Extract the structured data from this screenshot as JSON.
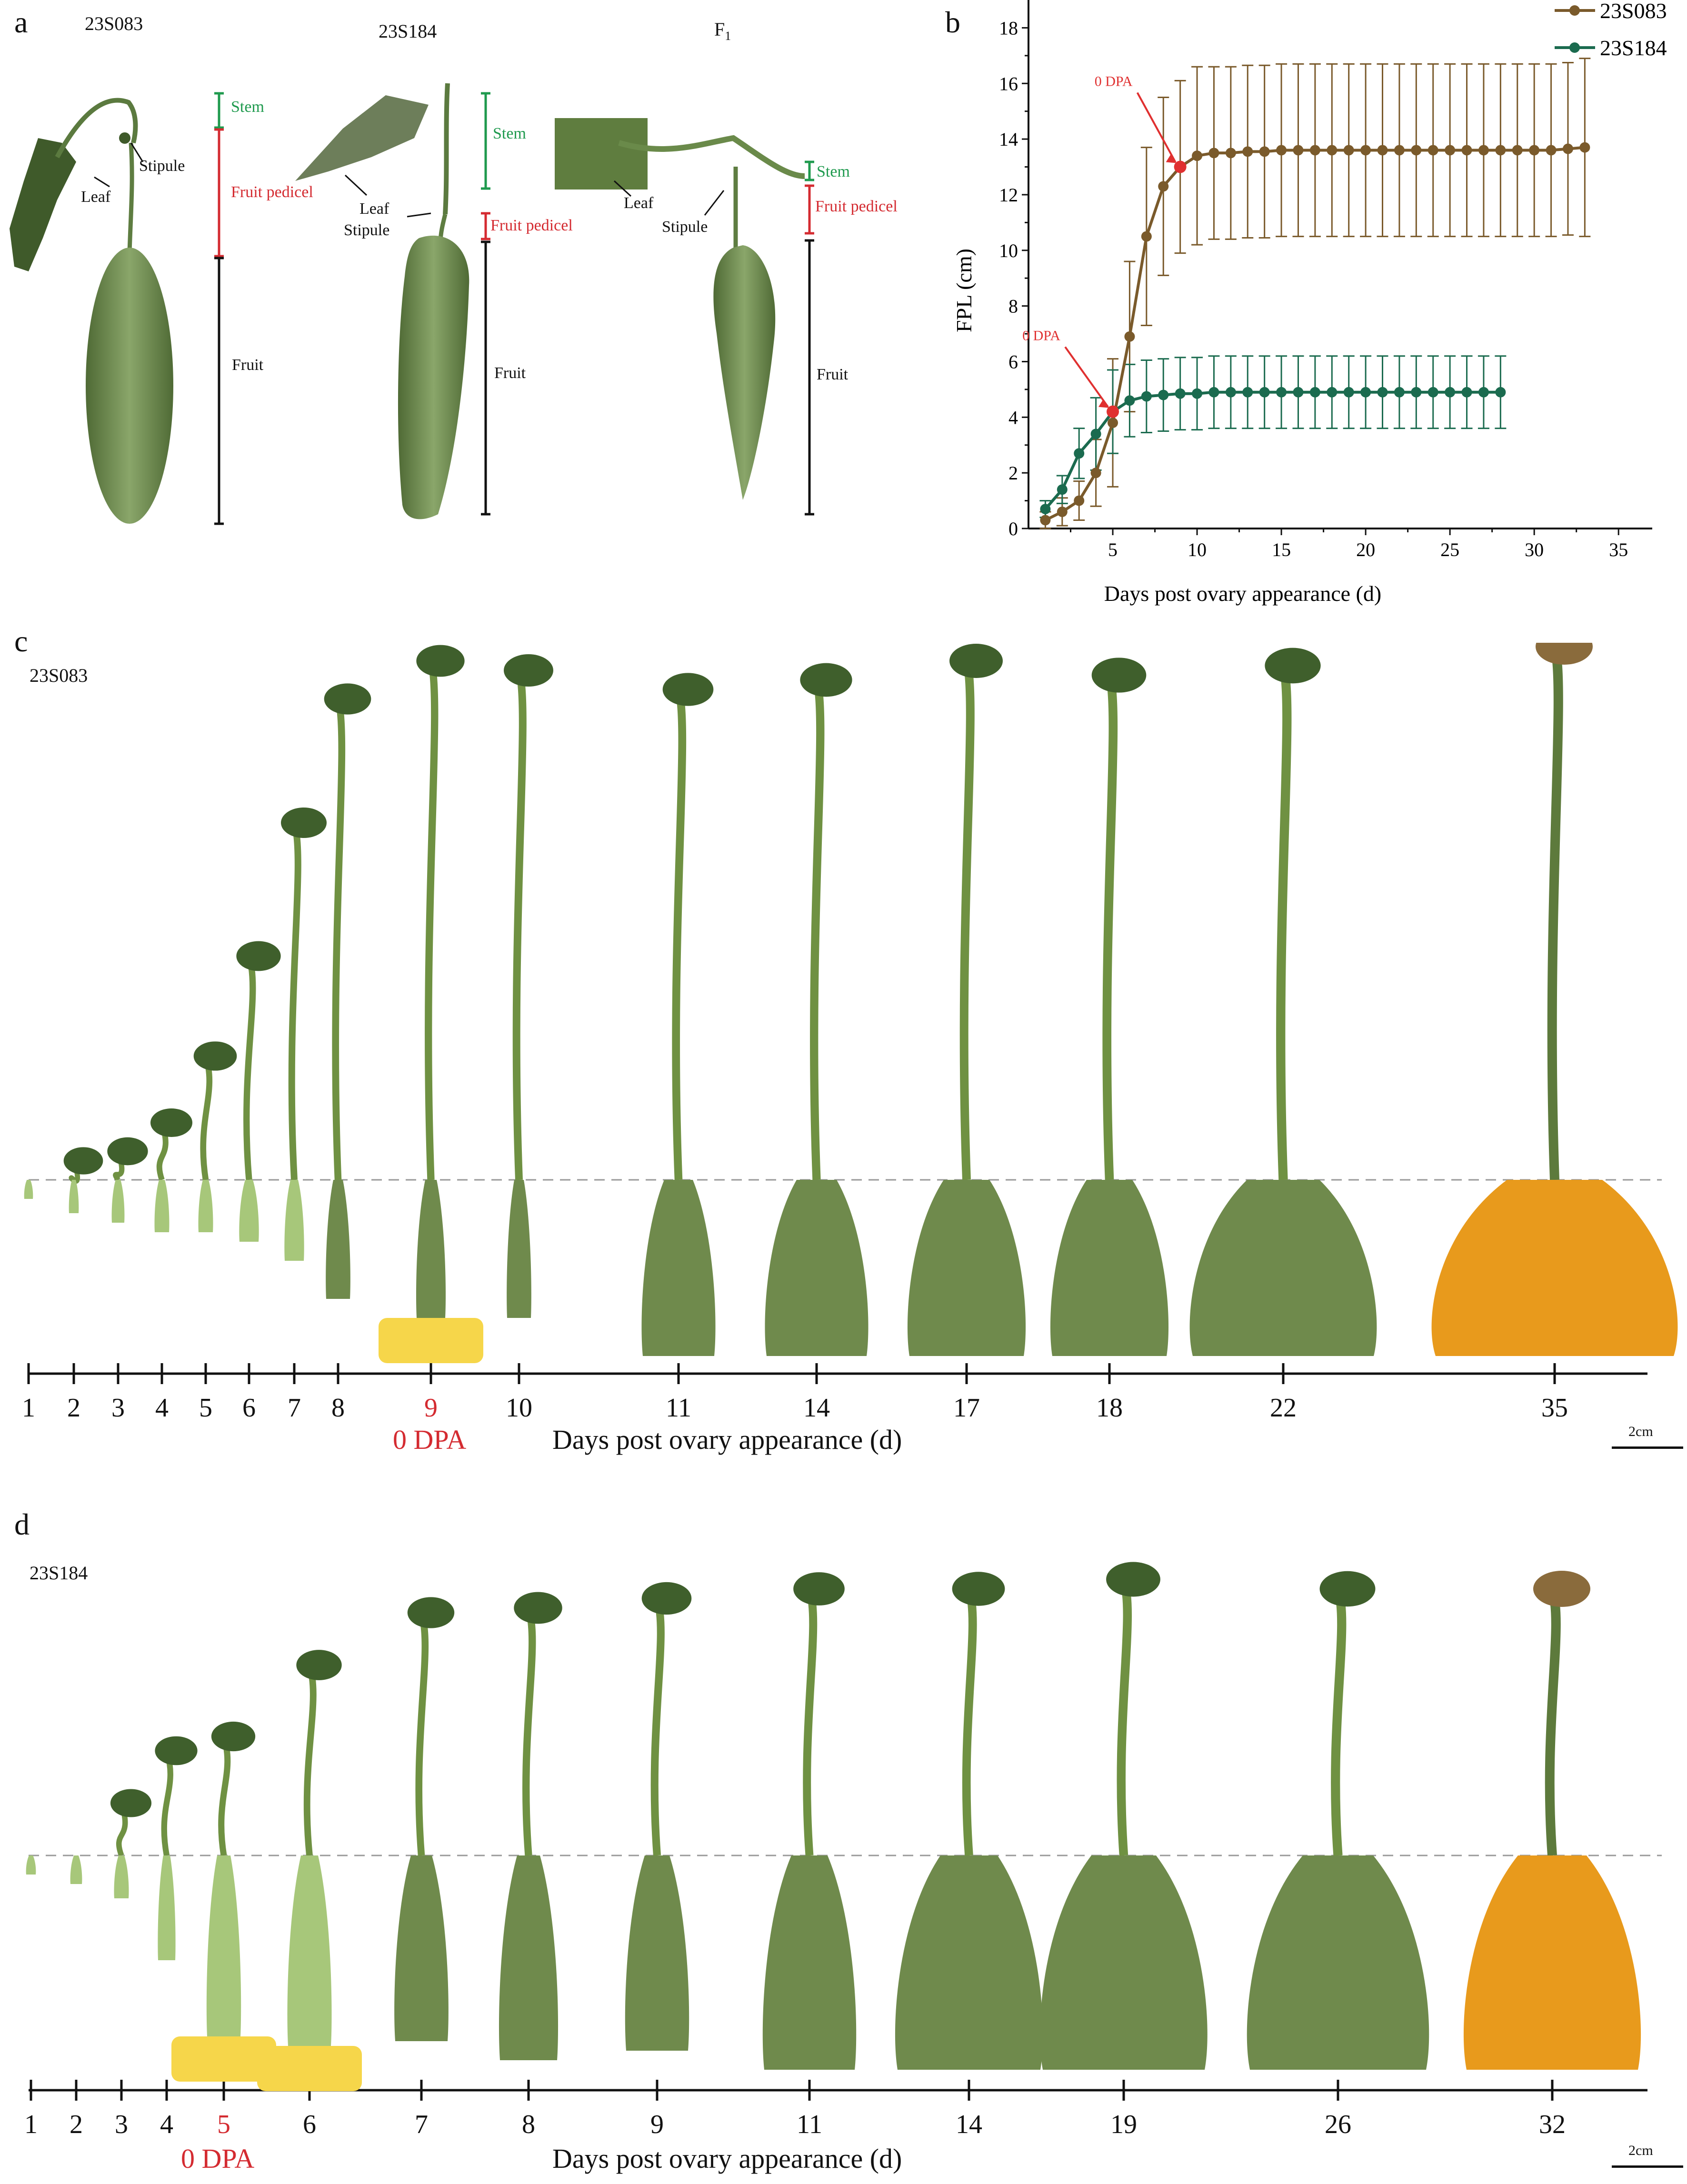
{
  "panel_a": {
    "letter": "a",
    "specimens": [
      {
        "title": "23S083",
        "stem": "Stem",
        "pedicel": "Fruit pedicel",
        "fruit": "Fruit",
        "leaf": "Leaf",
        "stipule": "Stipule"
      },
      {
        "title": "23S184",
        "stem": "Stem",
        "pedicel": "Fruit pedicel",
        "fruit": "Fruit",
        "leaf": "Leaf",
        "stipule": "Stipule"
      },
      {
        "title": "F",
        "title_sub": "1",
        "stem": "Stem",
        "pedicel": "Fruit pedicel",
        "fruit": "Fruit",
        "leaf": "Leaf",
        "stipule": "Stipule"
      }
    ]
  },
  "panel_b": {
    "letter": "b"
  },
  "chart_data": {
    "type": "line",
    "xlabel": "Days post ovary appearance (d)",
    "ylabel": "FPL (cm)",
    "xlim": [
      0,
      37
    ],
    "ylim": [
      0,
      19
    ],
    "xticks": [
      5,
      10,
      15,
      20,
      25,
      30,
      35
    ],
    "yticks": [
      0,
      2,
      4,
      6,
      8,
      10,
      12,
      14,
      16,
      18
    ],
    "legend_position": "top-right",
    "grid": false,
    "series": [
      {
        "name": "23S083",
        "color": "#7a5a2b",
        "x": [
          1,
          2,
          3,
          4,
          5,
          6,
          7,
          8,
          9,
          10,
          11,
          12,
          13,
          14,
          15,
          16,
          17,
          18,
          19,
          20,
          21,
          22,
          23,
          24,
          25,
          26,
          27,
          28,
          29,
          30,
          31,
          32,
          33
        ],
        "y": [
          0.3,
          0.6,
          1.0,
          2.0,
          3.8,
          6.9,
          10.5,
          12.3,
          13.0,
          13.4,
          13.5,
          13.5,
          13.55,
          13.55,
          13.6,
          13.6,
          13.6,
          13.6,
          13.6,
          13.6,
          13.6,
          13.6,
          13.6,
          13.6,
          13.6,
          13.6,
          13.6,
          13.6,
          13.6,
          13.6,
          13.6,
          13.65,
          13.7
        ],
        "err": [
          0.3,
          0.5,
          0.7,
          1.2,
          2.3,
          2.7,
          3.2,
          3.2,
          3.1,
          3.2,
          3.1,
          3.1,
          3.1,
          3.1,
          3.1,
          3.1,
          3.1,
          3.1,
          3.1,
          3.1,
          3.1,
          3.1,
          3.1,
          3.1,
          3.1,
          3.1,
          3.1,
          3.1,
          3.1,
          3.1,
          3.1,
          3.1,
          3.2
        ]
      },
      {
        "name": "23S184",
        "color": "#1b6b4f",
        "x": [
          1,
          2,
          3,
          4,
          5,
          6,
          7,
          8,
          9,
          10,
          11,
          12,
          13,
          14,
          15,
          16,
          17,
          18,
          19,
          20,
          21,
          22,
          23,
          24,
          25,
          26,
          27,
          28
        ],
        "y": [
          0.7,
          1.4,
          2.7,
          3.4,
          4.2,
          4.6,
          4.75,
          4.8,
          4.85,
          4.85,
          4.9,
          4.9,
          4.9,
          4.9,
          4.9,
          4.9,
          4.9,
          4.9,
          4.9,
          4.9,
          4.9,
          4.9,
          4.9,
          4.9,
          4.9,
          4.9,
          4.9,
          4.9
        ],
        "err": [
          0.3,
          0.5,
          0.9,
          1.3,
          1.5,
          1.3,
          1.3,
          1.3,
          1.3,
          1.3,
          1.3,
          1.3,
          1.3,
          1.3,
          1.3,
          1.3,
          1.3,
          1.3,
          1.3,
          1.3,
          1.3,
          1.3,
          1.3,
          1.3,
          1.3,
          1.3,
          1.3,
          1.3
        ]
      }
    ],
    "annotations": [
      {
        "text": "0 DPA",
        "x": 9,
        "y": 13.0,
        "series": "23S083",
        "color": "#e03030"
      },
      {
        "text": "0 DPA",
        "x": 5,
        "y": 4.2,
        "series": "23S184",
        "color": "#e03030"
      }
    ]
  },
  "panel_c": {
    "letter": "c",
    "title": "23S083",
    "days": [
      "1",
      "2",
      "3",
      "4",
      "5",
      "6",
      "7",
      "8",
      "9",
      "10",
      "11",
      "14",
      "17",
      "18",
      "22",
      "35"
    ],
    "highlight_day": "9",
    "dpa_label": "0 DPA",
    "axis_label": "Days post ovary appearance (d)",
    "scale": "2cm"
  },
  "panel_d": {
    "letter": "d",
    "title": "23S184",
    "days": [
      "1",
      "2",
      "3",
      "4",
      "5",
      "6",
      "7",
      "8",
      "9",
      "11",
      "14",
      "19",
      "26",
      "32"
    ],
    "highlight_day": "5",
    "dpa_label": "0 DPA",
    "axis_label": "Days post ovary appearance (d)",
    "scale": "2cm"
  },
  "colors": {
    "red": "#d42b31",
    "green_label": "#1f9a4e",
    "fruit_green": "#6f8a4c",
    "fruit_light": "#a7c77a",
    "fruit_yellow": "#e89a1c",
    "flower": "#f6d64a"
  }
}
